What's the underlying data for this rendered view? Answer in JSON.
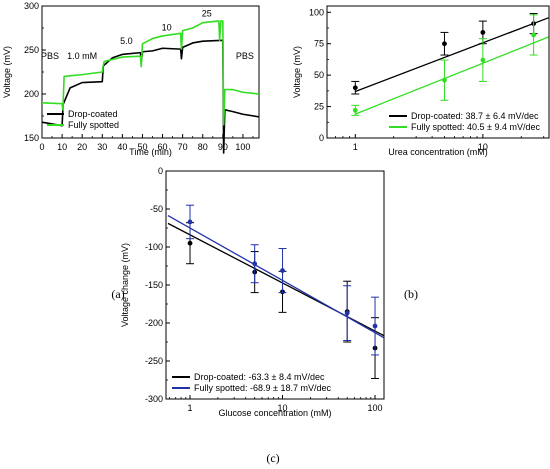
{
  "panel_labels": [
    "(a)",
    "(b)",
    "(c)"
  ],
  "chart_data": [
    {
      "panel": "(a)",
      "type": "line",
      "title": "",
      "xlabel": "Time (min)",
      "ylabel": "Voltage (mV)",
      "xlim": [
        0,
        108
      ],
      "ylim": [
        150,
        300
      ],
      "xticks": [
        0,
        10,
        20,
        30,
        40,
        50,
        60,
        70,
        80,
        90,
        100
      ],
      "yticks": [
        150,
        200,
        250,
        300
      ],
      "grid": false,
      "legend_position": "bottom-left",
      "annotations": [
        {
          "text": "PBS",
          "x": 4,
          "y": 240
        },
        {
          "text": "1.0 mM",
          "x": 20,
          "y": 240
        },
        {
          "text": "5.0",
          "x": 42,
          "y": 257
        },
        {
          "text": "10",
          "x": 62,
          "y": 272
        },
        {
          "text": "25",
          "x": 82,
          "y": 288
        },
        {
          "text": "PBS",
          "x": 101,
          "y": 240
        }
      ],
      "series": [
        {
          "name": "Drop-coated",
          "color": "#000000",
          "x": [
            0,
            10,
            10.5,
            14,
            20,
            30,
            30.5,
            35,
            40,
            49,
            49.4,
            50,
            55,
            60,
            69,
            69.4,
            70,
            75,
            80,
            90,
            90.4,
            91,
            95,
            100,
            108
          ],
          "y": [
            168,
            164,
            188,
            207,
            213,
            214,
            232,
            241,
            245,
            247,
            235,
            248,
            249,
            252,
            251,
            240,
            253,
            258,
            260,
            261,
            133,
            182,
            180,
            177,
            174
          ]
        },
        {
          "name": "Fully spotted",
          "color": "#33dd22",
          "x": [
            0,
            10,
            10.4,
            11,
            20,
            30,
            30.4,
            31,
            40,
            49,
            49.4,
            50,
            55,
            60,
            69,
            69.4,
            70,
            75,
            80,
            88,
            88.4,
            89,
            90,
            90.4,
            91,
            95,
            100,
            108
          ],
          "y": [
            190,
            189,
            182,
            220,
            222,
            225,
            232,
            237,
            242,
            243,
            231,
            257,
            263,
            266,
            269,
            251,
            272,
            275,
            281,
            283,
            261,
            283,
            283,
            165,
            205,
            205,
            202,
            200
          ]
        }
      ]
    },
    {
      "panel": "(b)",
      "type": "scatter",
      "title": "",
      "xlabel": "Urea concentration (mM)",
      "ylabel": "Voltage (mV)",
      "xscale": "log",
      "xlim": [
        0.6,
        33
      ],
      "ylim": [
        0,
        105
      ],
      "xticks": [
        1,
        10
      ],
      "yticks": [
        0,
        25,
        50,
        75,
        100
      ],
      "grid": false,
      "legend_position": "bottom-right",
      "series": [
        {
          "name": "Drop-coated: 38.7 ± 6.4 mV/dec",
          "color": "#000000",
          "x": [
            1,
            5,
            10,
            25
          ],
          "y": [
            40,
            75,
            84,
            91
          ],
          "err": [
            5,
            9,
            9,
            8
          ],
          "fit": {
            "slope": 38.7,
            "intercept": 37
          }
        },
        {
          "name": "Fully spotted: 40.5 ± 9.4 mV/dec",
          "color": "#33dd22",
          "x": [
            1,
            5,
            10,
            25
          ],
          "y": [
            22,
            46,
            62,
            82
          ],
          "err": [
            4,
            16,
            17,
            16
          ],
          "fit": {
            "slope": 40.5,
            "intercept": 19
          }
        }
      ]
    },
    {
      "panel": "(c)",
      "type": "scatter",
      "title": "",
      "xlabel": "Glucose concentration (mM)",
      "ylabel": "Voltage change (mV)",
      "xscale": "log",
      "xlim": [
        0.55,
        125
      ],
      "ylim": [
        -300,
        0
      ],
      "xticks": [
        1,
        10,
        100
      ],
      "yticks": [
        0,
        -50,
        -100,
        -150,
        -200,
        -250,
        -300
      ],
      "grid": false,
      "legend_position": "bottom-left",
      "series": [
        {
          "name": "Drop-coated: -63.3 ± 8.4 mV/dec",
          "color": "#000000",
          "x": [
            1,
            5,
            10,
            50,
            100
          ],
          "y": [
            -95,
            -133,
            -159,
            -185,
            -233
          ],
          "err": [
            27,
            27,
            27,
            40,
            40
          ],
          "fit": {
            "slope": -63.3,
            "intercept": -84
          }
        },
        {
          "name": "Fully spotted: -68.9 ± 18.7 mV/dec",
          "color": "#2233aa",
          "x": [
            1,
            5,
            10,
            50,
            100
          ],
          "y": [
            -67,
            -122,
            -131,
            -187,
            -204
          ],
          "err": [
            22,
            25,
            29,
            36,
            38
          ],
          "fit": {
            "slope": -68.9,
            "intercept": -75
          }
        }
      ]
    }
  ]
}
